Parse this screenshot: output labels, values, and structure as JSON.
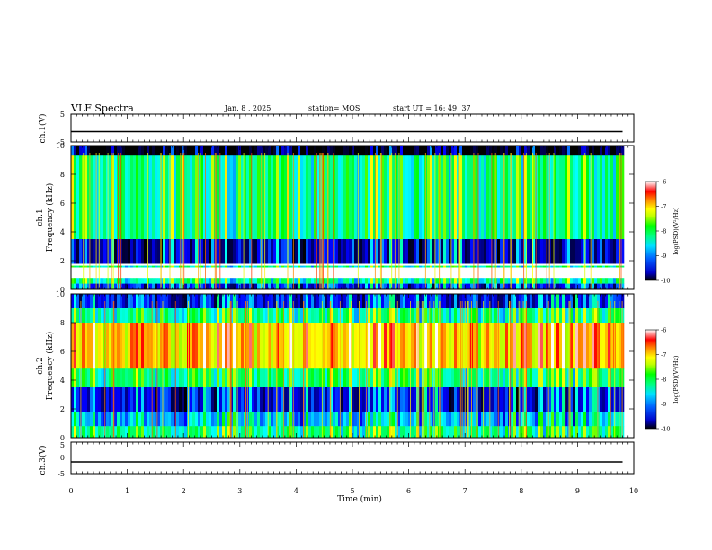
{
  "header": {
    "title": "VLF Spectra",
    "date": "Jan. 8 , 2025",
    "station": "station= MOS",
    "start_ut": "start UT =  16: 49: 37"
  },
  "colors": {
    "ink": "#000000",
    "background": "#ffffff",
    "colormap": [
      "#000000",
      "#00007a",
      "#0000ff",
      "#0080ff",
      "#00ffff",
      "#00ff80",
      "#00ff00",
      "#b4ff00",
      "#ffff00",
      "#ff8000",
      "#ff0000",
      "#ffffff"
    ]
  },
  "chart_data": [
    {
      "type": "line",
      "id": "ch1-voltage",
      "ylabel": "ch.1(V)",
      "ylim": [
        -5,
        5
      ],
      "yticks": [
        "5",
        "-5"
      ],
      "x": [
        0,
        9.8
      ],
      "y": [
        -1.3,
        -1.3
      ]
    },
    {
      "type": "heatmap",
      "id": "ch1-spectrogram",
      "ylabel": "ch.1\nFrequency (kHz)",
      "ylim": [
        0,
        10
      ],
      "yticks": [
        "0",
        "2",
        "4",
        "6",
        "8",
        "10"
      ],
      "xlim": [
        0,
        9.8
      ],
      "z_unit": "log(PSD)(V²/Hz)",
      "zlim": [
        -10,
        -6
      ],
      "colorbar_ticks": [
        "-6",
        "-7",
        "-8",
        "-9",
        "-10"
      ],
      "bands": [
        {
          "f_min": 9.3,
          "f_max": 10,
          "level": -10
        },
        {
          "f_min": 3.5,
          "f_max": 9.3,
          "level": -8.2
        },
        {
          "f_min": 1.8,
          "f_max": 3.5,
          "level": -9.5
        },
        {
          "f_min": 1.55,
          "f_max": 1.65,
          "level": -8.3
        },
        {
          "f_min": 0.4,
          "f_max": 0.8,
          "level": -8.3
        },
        {
          "f_min": 0,
          "f_max": 0.4,
          "level": -9.2
        }
      ]
    },
    {
      "type": "heatmap",
      "id": "ch2-spectrogram",
      "ylabel": "ch.2\nFrequency (kHz)",
      "ylim": [
        0,
        10
      ],
      "yticks": [
        "0",
        "2",
        "4",
        "6",
        "8",
        "10"
      ],
      "xlim": [
        0,
        9.8
      ],
      "z_unit": "log(PSD)(V²/Hz)",
      "zlim": [
        -10,
        -6
      ],
      "colorbar_ticks": [
        "-6",
        "-7",
        "-8",
        "-9",
        "-10"
      ],
      "bands": [
        {
          "f_min": 9.0,
          "f_max": 10,
          "level": -9.3
        },
        {
          "f_min": 8.0,
          "f_max": 9.0,
          "level": -8.3
        },
        {
          "f_min": 4.8,
          "f_max": 8.0,
          "level": -7.0
        },
        {
          "f_min": 3.5,
          "f_max": 4.8,
          "level": -8.2
        },
        {
          "f_min": 1.8,
          "f_max": 3.5,
          "level": -9.4
        },
        {
          "f_min": 0.8,
          "f_max": 1.8,
          "level": -8.8
        },
        {
          "f_min": 0,
          "f_max": 0.8,
          "level": -8.3
        }
      ]
    },
    {
      "type": "line",
      "id": "ch3-voltage",
      "ylabel": "ch.3(V)",
      "ylim": [
        -5,
        5
      ],
      "yticks": [
        "5",
        "0",
        "-5"
      ],
      "x": [
        0,
        9.8
      ],
      "y": [
        -1.3,
        -1.3
      ]
    }
  ],
  "x_axis": {
    "label": "Time (min)",
    "xlim": [
      0,
      10
    ],
    "ticks": [
      "0",
      "1",
      "2",
      "3",
      "4",
      "5",
      "6",
      "7",
      "8",
      "9",
      "10"
    ]
  }
}
